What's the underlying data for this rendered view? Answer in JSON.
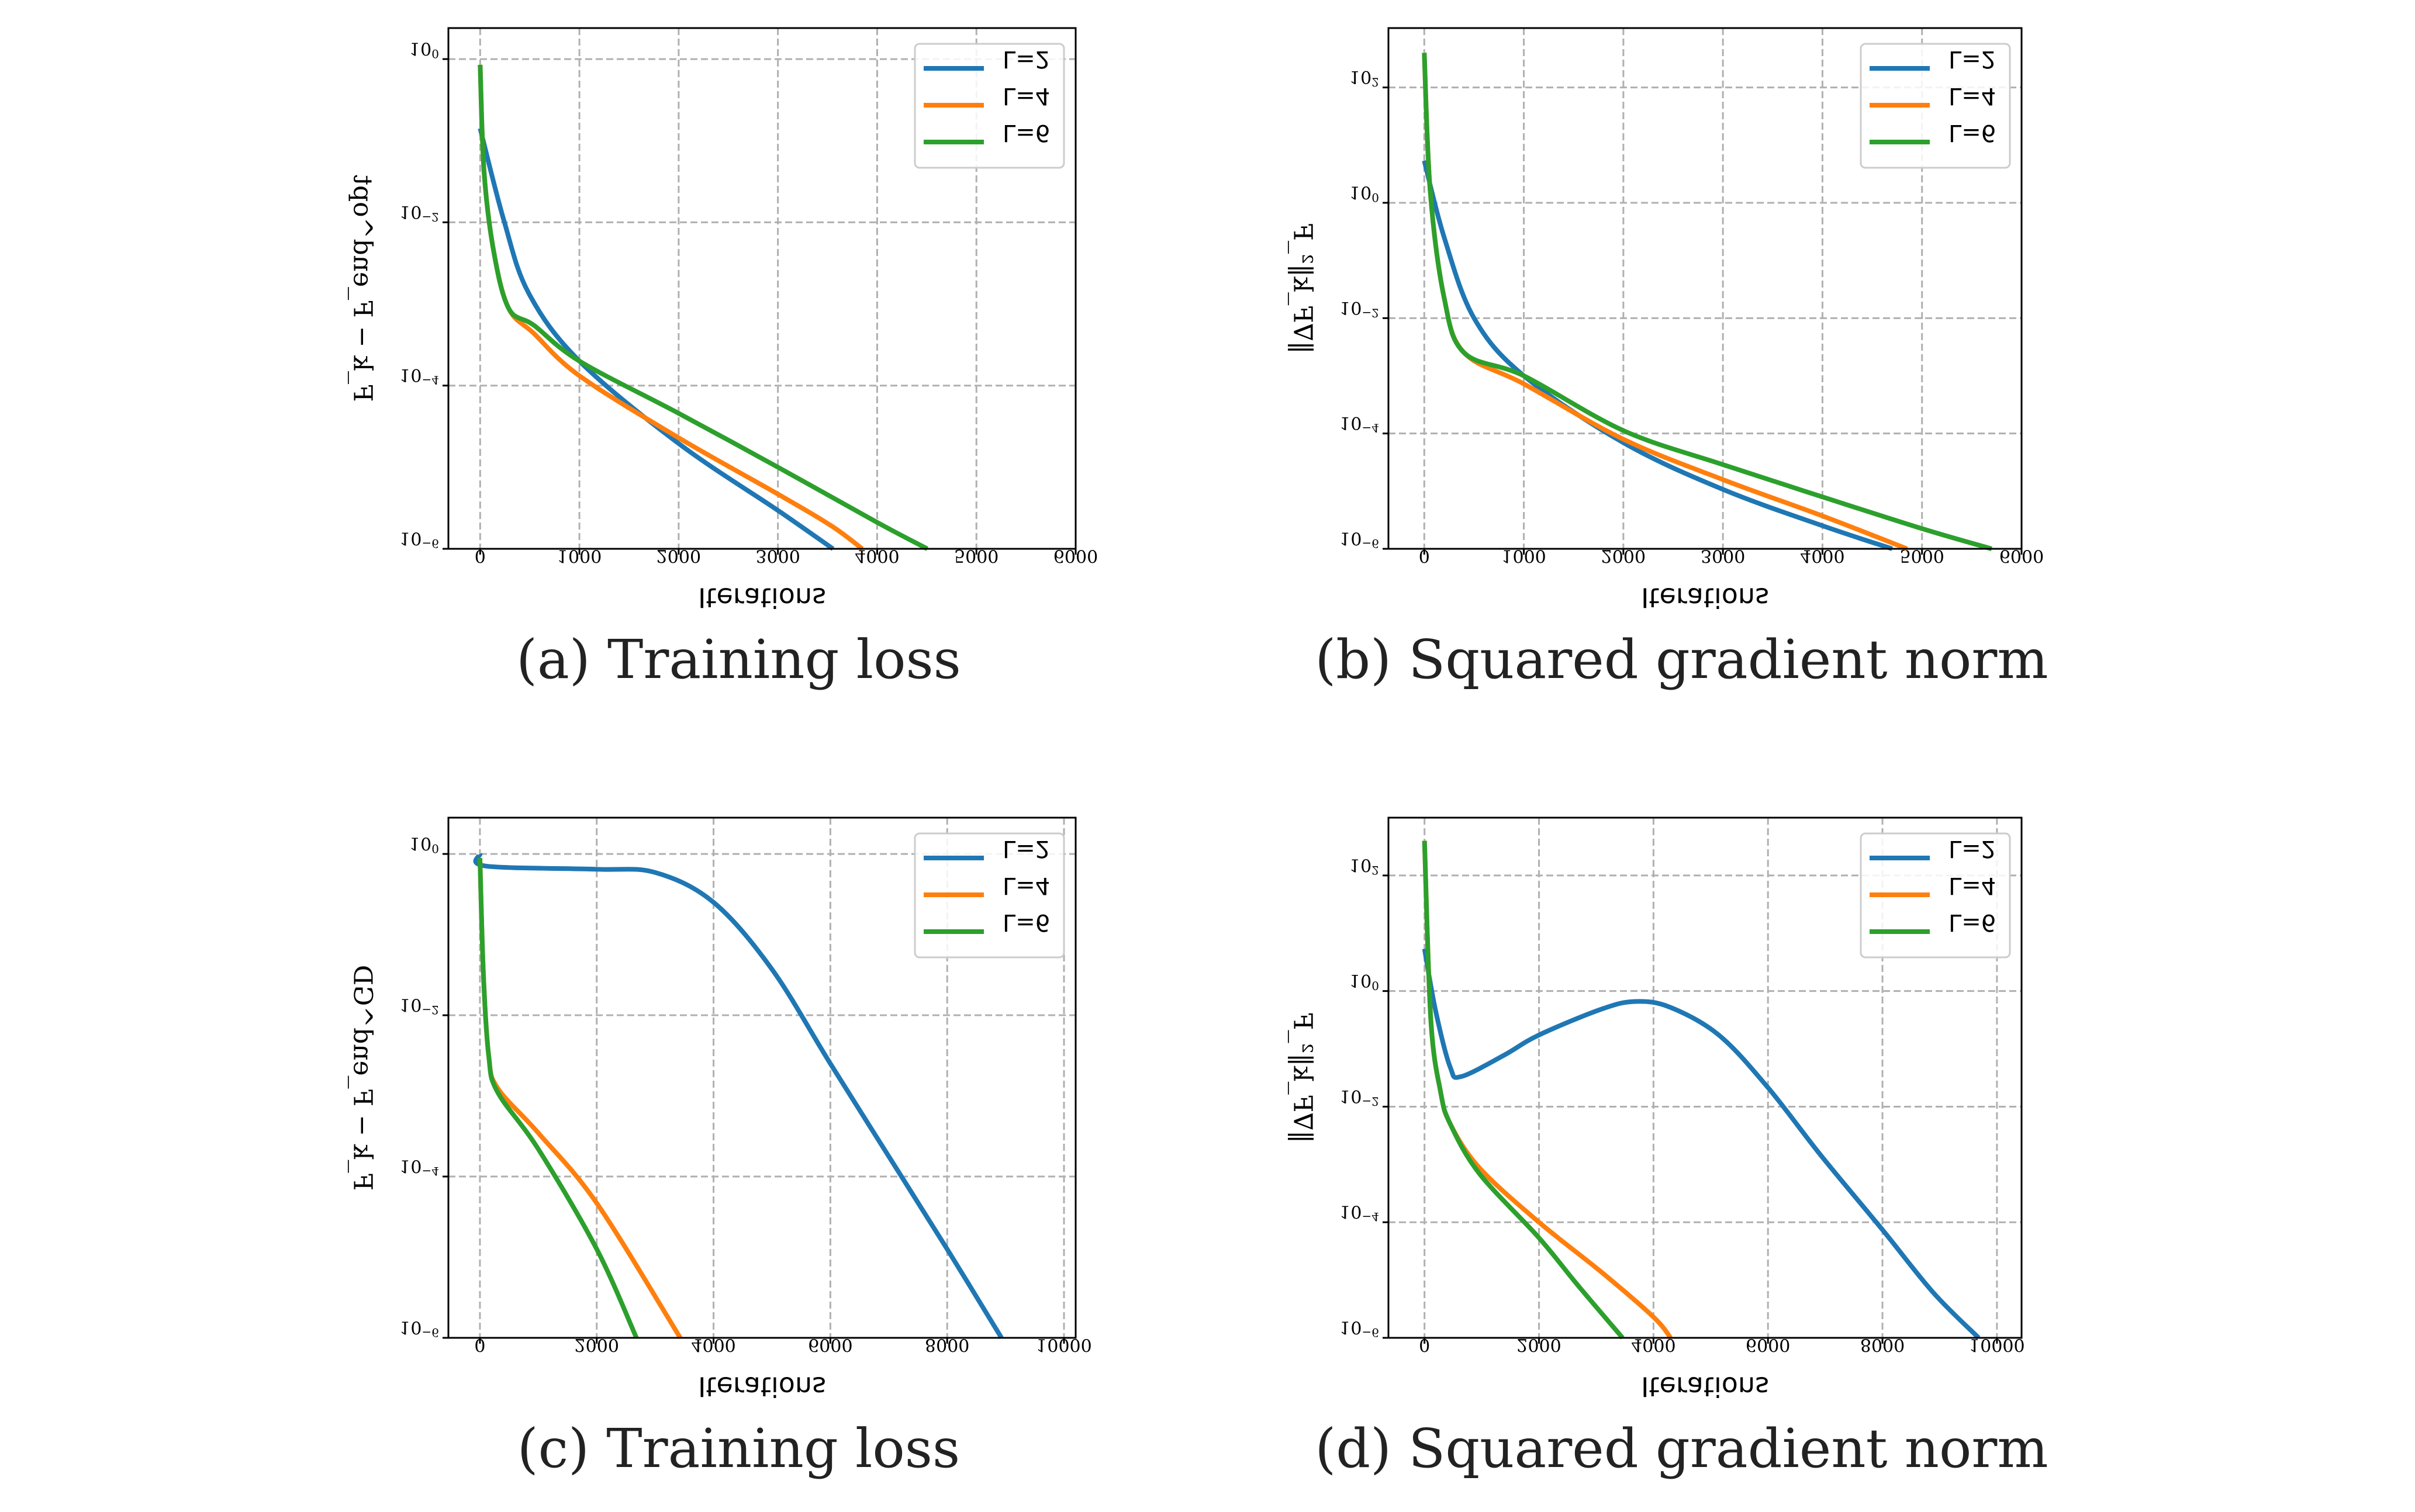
{
  "colors": {
    "L=2": "#1f77b4",
    "L=4": "#ff7f0e",
    "L=6": "#2ca02c",
    "grid": "#b0b0b0"
  },
  "chart_data": [
    {
      "type": "line",
      "caption": "(a) Training loss",
      "xlabel": "Iterations",
      "ylabel": "F_k − F_end^opt",
      "yscale": "log",
      "xlim": [
        -320,
        6000
      ],
      "ylim_log10": [
        -6,
        0.38
      ],
      "xticks": [
        0,
        1000,
        2000,
        3000,
        4000,
        5000,
        6000
      ],
      "yticks_log10": [
        0,
        -2,
        -4,
        -6
      ],
      "grid": true,
      "legend": "top-right",
      "series": [
        {
          "name": "L=2",
          "x": [
            0,
            240,
            490,
            1000,
            2000,
            3000,
            3555
          ],
          "log10_y": [
            -0.85,
            -1.98,
            -2.87,
            -3.7,
            -4.71,
            -5.53,
            -6
          ]
        },
        {
          "name": "L=4",
          "x": [
            0,
            40,
            140,
            290,
            540,
            1000,
            2000,
            3000,
            3540,
            3850
          ],
          "log10_y": [
            -0.07,
            -1.39,
            -2.38,
            -3.06,
            -3.36,
            -3.88,
            -4.64,
            -5.33,
            -5.72,
            -6
          ]
        },
        {
          "name": "L=6",
          "x": [
            0,
            40,
            140,
            290,
            540,
            1000,
            2000,
            3000,
            3990,
            4505
          ],
          "log10_y": [
            -0.07,
            -1.39,
            -2.38,
            -3.06,
            -3.26,
            -3.7,
            -4.34,
            -5.0,
            -5.67,
            -6
          ]
        }
      ]
    },
    {
      "type": "line",
      "caption": "(b) Squared gradient norm",
      "xlabel": "Iterations",
      "ylabel": "‖∇F_k‖²_F",
      "yscale": "log",
      "xlim": [
        -360,
        6000
      ],
      "ylim_log10": [
        -6,
        3.03
      ],
      "xticks": [
        0,
        1000,
        2000,
        3000,
        4000,
        5000,
        6000
      ],
      "yticks_log10": [
        2,
        0,
        -2,
        -4,
        -6
      ],
      "grid": true,
      "legend": "top-right",
      "series": [
        {
          "name": "L=2",
          "x": [
            0,
            200,
            500,
            1000,
            2000,
            3000,
            4000,
            4700
          ],
          "log10_y": [
            0.73,
            -0.6,
            -2.0,
            -3.0,
            -4.16,
            -4.97,
            -5.6,
            -6
          ]
        },
        {
          "name": "L=4",
          "x": [
            0,
            60,
            200,
            400,
            1000,
            2000,
            3000,
            4000,
            4850
          ],
          "log10_y": [
            2.6,
            0.2,
            -1.65,
            -2.6,
            -3.14,
            -4.1,
            -4.8,
            -5.43,
            -6
          ]
        },
        {
          "name": "L=6",
          "x": [
            0,
            60,
            200,
            400,
            1000,
            2000,
            3000,
            4000,
            5000,
            5700
          ],
          "log10_y": [
            2.6,
            0.2,
            -1.65,
            -2.6,
            -3.0,
            -3.95,
            -4.54,
            -5.1,
            -5.65,
            -6
          ]
        }
      ]
    },
    {
      "type": "line",
      "caption": "(c) Training loss",
      "xlabel": "Iterations",
      "ylabel": "F_k − F_end^GD",
      "yscale": "log",
      "xlim": [
        -540,
        10200
      ],
      "ylim_log10": [
        -6,
        0.45
      ],
      "xticks": [
        0,
        2000,
        4000,
        6000,
        8000,
        10000
      ],
      "yticks_log10": [
        0,
        -2,
        -4,
        -6
      ],
      "grid": true,
      "legend": "top-right",
      "series": [
        {
          "name": "L=2",
          "x": [
            0,
            100,
            2000,
            3000,
            4000,
            5000,
            6000,
            7000,
            8000,
            8930
          ],
          "log10_y": [
            0,
            -0.15,
            -0.19,
            -0.23,
            -0.6,
            -1.43,
            -2.6,
            -3.75,
            -4.9,
            -6
          ]
        },
        {
          "name": "L=4",
          "x": [
            0,
            60,
            150,
            300,
            1000,
            2000,
            3430
          ],
          "log10_y": [
            -0.05,
            -1.5,
            -2.5,
            -2.9,
            -3.46,
            -4.33,
            -6
          ]
        },
        {
          "name": "L=6",
          "x": [
            0,
            60,
            150,
            300,
            1000,
            2000,
            2680
          ],
          "log10_y": [
            -0.05,
            -1.5,
            -2.5,
            -2.95,
            -3.66,
            -4.9,
            -6
          ]
        }
      ]
    },
    {
      "type": "line",
      "caption": "(d) Squared gradient norm",
      "xlabel": "Iterations",
      "ylabel": "‖∇F_k‖²_F",
      "yscale": "log",
      "xlim": [
        -630,
        10430
      ],
      "ylim_log10": [
        -6,
        3.0
      ],
      "xticks": [
        0,
        2000,
        4000,
        6000,
        8000,
        10000
      ],
      "yticks_log10": [
        2,
        0,
        -2,
        -4,
        -6
      ],
      "grid": true,
      "legend": "top-right",
      "series": [
        {
          "name": "L=2",
          "x": [
            0,
            196,
            450,
            640,
            1390,
            2000,
            3100,
            3690,
            4290,
            5140,
            6000,
            6930,
            8000,
            8890,
            9680
          ],
          "log10_y": [
            0.73,
            -0.35,
            -1.32,
            -1.48,
            -1.11,
            -0.76,
            -0.31,
            -0.18,
            -0.28,
            -0.76,
            -1.67,
            -2.85,
            -4.13,
            -5.22,
            -6
          ]
        },
        {
          "name": "L=4",
          "x": [
            0,
            110,
            280,
            450,
            960,
            2000,
            3100,
            4000,
            4300
          ],
          "log10_y": [
            2.6,
            -0.49,
            -1.74,
            -2.3,
            -3.06,
            -4.0,
            -4.87,
            -5.64,
            -6
          ]
        },
        {
          "name": "L=6",
          "x": [
            0,
            110,
            280,
            450,
            960,
            2000,
            2670,
            3460
          ],
          "log10_y": [
            2.6,
            -0.49,
            -1.74,
            -2.3,
            -3.16,
            -4.27,
            -5.08,
            -6
          ]
        }
      ]
    }
  ]
}
